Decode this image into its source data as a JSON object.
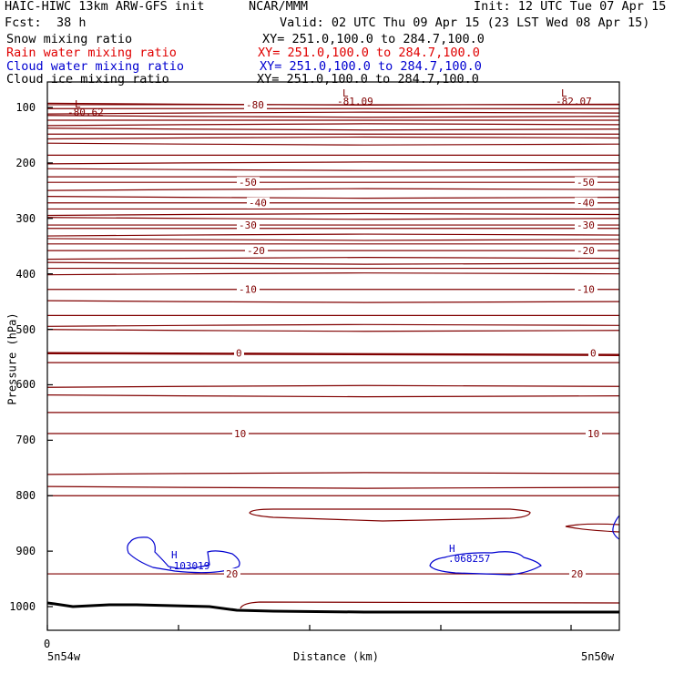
{
  "header": {
    "model": "HAIC-HIWC 13km ARW-GFS init",
    "org": "NCAR/MMM",
    "init": "Init: 12 UTC Tue 07 Apr 15",
    "fcst_label": "Fcst:",
    "fcst_value": "38 h",
    "valid": "Valid: 02 UTC Thu 09 Apr 15 (23 LST Wed 08 Apr 15)"
  },
  "fields": [
    {
      "name": "Snow mixing ratio",
      "xy": "XY= 251.0,100.0 to 284.7,100.0",
      "color": "#000000"
    },
    {
      "name": "Rain water mixing ratio",
      "xy": "XY= 251.0,100.0 to 284.7,100.0",
      "color": "#e00000"
    },
    {
      "name": "Cloud water mixing ratio",
      "xy": "XY= 251.0,100.0 to 284.7,100.0",
      "color": "#0000d0"
    },
    {
      "name": "Cloud ice mixing ratio",
      "xy": "XY= 251.0,100.0 to 284.7,100.0",
      "color": "#000000"
    }
  ],
  "chart_data": {
    "type": "line",
    "xlabel": "Distance (km)",
    "ylabel": "Pressure (hPa)",
    "y_ticks": [
      100,
      200,
      300,
      400,
      500,
      600,
      700,
      800,
      900,
      1000
    ],
    "x_tick_label": "0",
    "x_left_label": "5n54w",
    "x_right_label": "5n50w",
    "colors": {
      "temperature": "#800000",
      "cloud_water": "#0000d0",
      "terrain": "#000000",
      "frame": "#000000"
    },
    "temperature_contours": [
      {
        "label": "-80",
        "pressure": 95
      },
      {
        "label": "-50",
        "pressure": 235
      },
      {
        "label": "-40",
        "pressure": 272
      },
      {
        "label": "-30",
        "pressure": 312
      },
      {
        "label": "-20",
        "pressure": 358
      },
      {
        "label": "-10",
        "pressure": 428
      },
      {
        "label": "0",
        "pressure": 543
      },
      {
        "label": "10",
        "pressure": 688
      },
      {
        "label": "20",
        "pressure": 941
      }
    ],
    "extrema": [
      {
        "type": "L",
        "value": "-80.62",
        "color": "#800000"
      },
      {
        "type": "L",
        "value": "-81.09",
        "color": "#800000"
      },
      {
        "type": "L",
        "value": "-82.07",
        "color": "#800000"
      },
      {
        "type": "H",
        "value": ".103019",
        "color": "#0000d0"
      },
      {
        "type": "H",
        "value": ".068257",
        "color": "#0000d0"
      }
    ]
  }
}
